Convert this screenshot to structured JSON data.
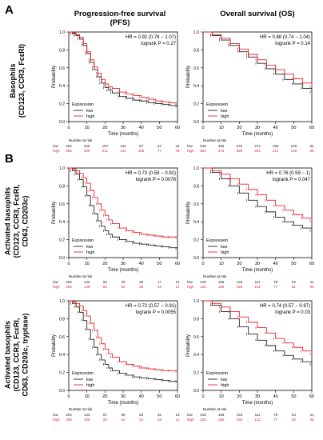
{
  "figure": {
    "panel_letters": [
      "A",
      "B"
    ],
    "column_titles": [
      "Progression-free survival (PFS)",
      "Overall survival (OS)"
    ],
    "row_labels": [
      [
        "Basophils",
        "(CD123, CCR3, FcεRI)"
      ],
      [
        "Activated basophils",
        "(CD123, CCR3, FcεRI,",
        "CD63, CD203c)"
      ],
      [
        "Activated basophils",
        "(CD123, CCR3, FcεRI,",
        "CD63, CD203c, tryptase)"
      ]
    ]
  },
  "colors": {
    "low": "#222222",
    "high": "#e8232a"
  },
  "chart_data": [
    {
      "type": "line",
      "row": 0,
      "col": 0,
      "hr_text": "HR = 0.92 (0.78 − 1.07)",
      "p_text": "logrank P = 0.27",
      "xlabel": "Time (months)",
      "ylabel": "Probability",
      "xlim": [
        0,
        60
      ],
      "ylim": [
        0,
        1
      ],
      "xticks": [
        0,
        10,
        20,
        30,
        40,
        50,
        60
      ],
      "yticks": [
        0,
        0.2,
        0.4,
        0.6,
        0.8,
        1.0
      ],
      "legend_title": "Expression",
      "series": [
        {
          "name": "low",
          "x": [
            0,
            2,
            4,
            6,
            8,
            10,
            12,
            14,
            16,
            18,
            20,
            22,
            24,
            28,
            32,
            36,
            40,
            44,
            48,
            52,
            56,
            60
          ],
          "y": [
            1,
            0.98,
            0.96,
            0.92,
            0.85,
            0.76,
            0.66,
            0.58,
            0.5,
            0.43,
            0.38,
            0.35,
            0.32,
            0.28,
            0.26,
            0.24,
            0.23,
            0.21,
            0.2,
            0.19,
            0.18,
            0.17
          ]
        },
        {
          "name": "high",
          "x": [
            0,
            2,
            4,
            6,
            8,
            10,
            12,
            14,
            16,
            18,
            20,
            22,
            24,
            28,
            32,
            36,
            40,
            44,
            48,
            52,
            56,
            60
          ],
          "y": [
            1,
            0.99,
            0.97,
            0.94,
            0.87,
            0.78,
            0.69,
            0.61,
            0.54,
            0.47,
            0.42,
            0.39,
            0.37,
            0.33,
            0.31,
            0.29,
            0.27,
            0.25,
            0.23,
            0.22,
            0.21,
            0.2
          ]
        }
      ],
      "risk": {
        "title": "Number at risk",
        "times": [
          0,
          10,
          20,
          30,
          40,
          50,
          60
        ],
        "low": [
          "484",
          "340",
          "187",
          "104",
          "67",
          "42",
          "34"
        ],
        "high": [
          "496",
          "360",
          "211",
          "141",
          "105",
          "77",
          "48"
        ]
      }
    },
    {
      "type": "line",
      "row": 0,
      "col": 1,
      "hr_text": "HR = 0.88 (0.74 − 1.04)",
      "p_text": "logrank P = 0.14",
      "xlabel": "Time (months)",
      "ylabel": "Probability",
      "xlim": [
        0,
        60
      ],
      "ylim": [
        0,
        1
      ],
      "xticks": [
        0,
        10,
        20,
        30,
        40,
        50,
        60
      ],
      "yticks": [
        0,
        0.2,
        0.4,
        0.6,
        0.8,
        1.0
      ],
      "legend_title": "Expression",
      "series": [
        {
          "name": "low",
          "x": [
            0,
            5,
            10,
            15,
            20,
            25,
            30,
            35,
            40,
            45,
            50,
            55,
            60
          ],
          "y": [
            1,
            0.96,
            0.91,
            0.85,
            0.78,
            0.72,
            0.65,
            0.59,
            0.53,
            0.47,
            0.42,
            0.37,
            0.33
          ]
        },
        {
          "name": "high",
          "x": [
            0,
            5,
            10,
            15,
            20,
            25,
            30,
            35,
            40,
            45,
            50,
            55,
            60
          ],
          "y": [
            1,
            0.97,
            0.93,
            0.87,
            0.81,
            0.75,
            0.69,
            0.63,
            0.58,
            0.53,
            0.48,
            0.43,
            0.39
          ]
        }
      ],
      "risk": {
        "title": "Number at risk",
        "times": [
          0,
          10,
          20,
          30,
          40,
          50,
          60
        ],
        "low": [
          "546",
          "456",
          "370",
          "274",
          "196",
          "129",
          "82"
        ],
        "high": [
          "552",
          "476",
          "386",
          "294",
          "214",
          "149",
          "99"
        ]
      }
    },
    {
      "type": "line",
      "row": 1,
      "col": 0,
      "hr_text": "HR = 0.73 (0.58 − 0.92)",
      "p_text": "logrank P = 0.0078",
      "xlabel": "Time (months)",
      "ylabel": "Probability",
      "xlim": [
        0,
        60
      ],
      "ylim": [
        0,
        1
      ],
      "xticks": [
        0,
        10,
        20,
        30,
        40,
        50,
        60
      ],
      "yticks": [
        0,
        0.2,
        0.4,
        0.6,
        0.8,
        1.0
      ],
      "legend_title": "Expression",
      "series": [
        {
          "name": "low",
          "x": [
            0,
            2,
            4,
            6,
            8,
            10,
            12,
            14,
            16,
            18,
            20,
            22,
            24,
            28,
            32,
            36,
            40,
            44,
            48,
            52,
            56,
            60
          ],
          "y": [
            1,
            0.97,
            0.93,
            0.87,
            0.79,
            0.69,
            0.58,
            0.49,
            0.41,
            0.35,
            0.3,
            0.26,
            0.23,
            0.2,
            0.18,
            0.16,
            0.15,
            0.14,
            0.13,
            0.12,
            0.11,
            0.1
          ]
        },
        {
          "name": "high",
          "x": [
            0,
            2,
            4,
            6,
            8,
            10,
            12,
            14,
            16,
            18,
            20,
            22,
            24,
            28,
            32,
            36,
            40,
            44,
            48,
            52,
            56,
            60
          ],
          "y": [
            1,
            0.99,
            0.97,
            0.94,
            0.89,
            0.83,
            0.75,
            0.67,
            0.6,
            0.53,
            0.47,
            0.42,
            0.38,
            0.33,
            0.3,
            0.28,
            0.26,
            0.25,
            0.24,
            0.23,
            0.23,
            0.22
          ]
        }
      ],
      "risk": {
        "title": "Number at risk",
        "times": [
          0,
          10,
          20,
          30,
          40,
          50,
          60
        ],
        "low": [
          "200",
          "143",
          "66",
          "40",
          "29",
          "17",
          "14"
        ],
        "high": [
          "206",
          "148",
          "84",
          "53",
          "38",
          "19",
          "11"
        ]
      }
    },
    {
      "type": "line",
      "row": 1,
      "col": 1,
      "hr_text": "HR = 0.76 (0.59 − 1)",
      "p_text": "logrank P = 0.047",
      "xlabel": "Time (months)",
      "ylabel": "Probability",
      "xlim": [
        0,
        60
      ],
      "ylim": [
        0,
        1
      ],
      "xticks": [
        0,
        10,
        20,
        30,
        40,
        50,
        60
      ],
      "yticks": [
        0,
        0.2,
        0.4,
        0.6,
        0.8,
        1.0
      ],
      "legend_title": "Expression",
      "series": [
        {
          "name": "low",
          "x": [
            0,
            5,
            10,
            15,
            20,
            25,
            30,
            35,
            40,
            45,
            50,
            55,
            60
          ],
          "y": [
            1,
            0.95,
            0.88,
            0.8,
            0.72,
            0.64,
            0.57,
            0.51,
            0.45,
            0.4,
            0.36,
            0.33,
            0.3
          ]
        },
        {
          "name": "high",
          "x": [
            0,
            5,
            10,
            15,
            20,
            25,
            30,
            35,
            40,
            45,
            50,
            55,
            60
          ],
          "y": [
            1,
            0.97,
            0.93,
            0.88,
            0.82,
            0.76,
            0.7,
            0.64,
            0.58,
            0.53,
            0.48,
            0.44,
            0.41
          ]
        }
      ],
      "risk": {
        "title": "Number at risk",
        "times": [
          0,
          10,
          20,
          30,
          40,
          50,
          60
        ],
        "low": [
          "218",
          "168",
          "133",
          "111",
          "78",
          "54",
          "41"
        ],
        "high": [
          "223",
          "186",
          "155",
          "114",
          "77",
          "51",
          "35"
        ]
      }
    },
    {
      "type": "line",
      "row": 2,
      "col": 0,
      "hr_text": "HR = 0.72 (0.57 − 0.91)",
      "p_text": "logrank P = 0.0055",
      "xlabel": "Time (months)",
      "ylabel": "Probability",
      "xlim": [
        0,
        60
      ],
      "ylim": [
        0,
        1
      ],
      "xticks": [
        0,
        10,
        20,
        30,
        40,
        50,
        60
      ],
      "yticks": [
        0,
        0.2,
        0.4,
        0.6,
        0.8,
        1.0
      ],
      "legend_title": "Expression",
      "series": [
        {
          "name": "low",
          "x": [
            0,
            2,
            4,
            6,
            8,
            10,
            12,
            14,
            16,
            18,
            20,
            22,
            24,
            28,
            32,
            36,
            40,
            44,
            48,
            52,
            56,
            60
          ],
          "y": [
            1,
            0.97,
            0.93,
            0.87,
            0.78,
            0.68,
            0.57,
            0.48,
            0.4,
            0.34,
            0.29,
            0.25,
            0.22,
            0.19,
            0.17,
            0.15,
            0.14,
            0.13,
            0.12,
            0.11,
            0.1,
            0.1
          ]
        },
        {
          "name": "high",
          "x": [
            0,
            2,
            4,
            6,
            8,
            10,
            12,
            14,
            16,
            18,
            20,
            22,
            24,
            28,
            32,
            36,
            40,
            44,
            48,
            52,
            56,
            60
          ],
          "y": [
            1,
            0.99,
            0.97,
            0.94,
            0.89,
            0.83,
            0.75,
            0.67,
            0.59,
            0.52,
            0.46,
            0.41,
            0.37,
            0.32,
            0.29,
            0.27,
            0.25,
            0.24,
            0.23,
            0.22,
            0.22,
            0.21
          ]
        }
      ],
      "risk": {
        "title": "Number at risk",
        "times": [
          0,
          10,
          20,
          30,
          40,
          50,
          60
        ],
        "low": [
          "204",
          "144",
          "67",
          "39",
          "28",
          "16",
          "13"
        ],
        "high": [
          "206",
          "148",
          "83",
          "52",
          "34",
          "19",
          "11"
        ]
      }
    },
    {
      "type": "line",
      "row": 2,
      "col": 1,
      "hr_text": "HR = 0.74 (0.57 − 0.97)",
      "p_text": "logrank P = 0.03",
      "xlabel": "Time (months)",
      "ylabel": "Probability",
      "xlim": [
        0,
        60
      ],
      "ylim": [
        0,
        1
      ],
      "xticks": [
        0,
        10,
        20,
        30,
        40,
        50,
        60
      ],
      "yticks": [
        0,
        0.2,
        0.4,
        0.6,
        0.8,
        1.0
      ],
      "legend_title": "Expression",
      "series": [
        {
          "name": "low",
          "x": [
            0,
            5,
            10,
            15,
            20,
            25,
            30,
            35,
            40,
            45,
            50,
            55,
            60
          ],
          "y": [
            1,
            0.95,
            0.88,
            0.8,
            0.71,
            0.63,
            0.56,
            0.5,
            0.44,
            0.39,
            0.35,
            0.32,
            0.29
          ]
        },
        {
          "name": "high",
          "x": [
            0,
            5,
            10,
            15,
            20,
            25,
            30,
            35,
            40,
            45,
            50,
            55,
            60
          ],
          "y": [
            1,
            0.97,
            0.93,
            0.88,
            0.82,
            0.76,
            0.7,
            0.64,
            0.58,
            0.53,
            0.48,
            0.44,
            0.41
          ]
        }
      ],
      "risk": {
        "title": "Number at risk",
        "times": [
          0,
          10,
          20,
          30,
          40,
          50,
          60
        ],
        "low": [
          "218",
          "168",
          "133",
          "111",
          "78",
          "54",
          "41"
        ],
        "high": [
          "223",
          "185",
          "155",
          "113",
          "77",
          "50",
          "35"
        ]
      }
    }
  ]
}
